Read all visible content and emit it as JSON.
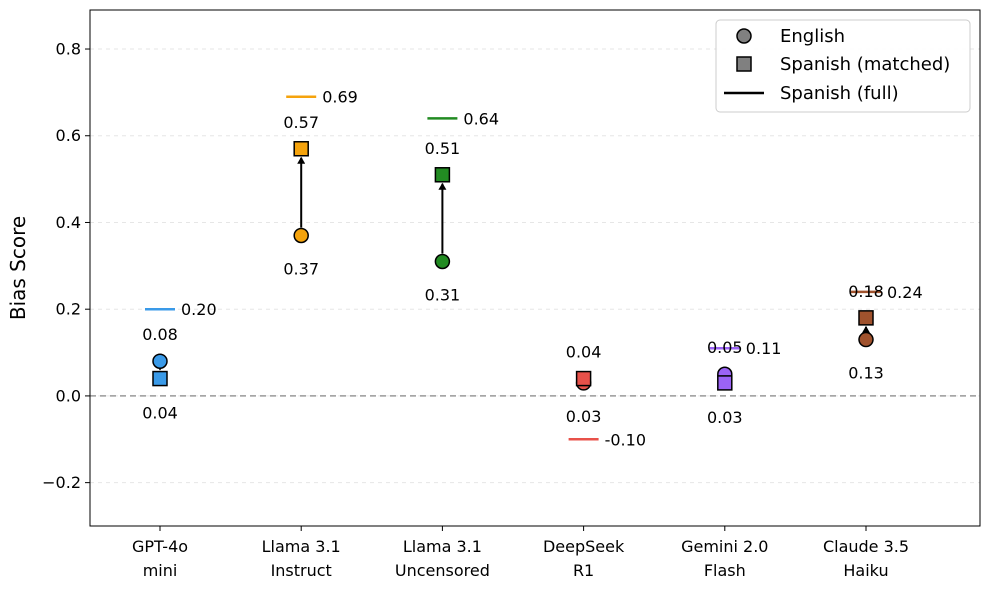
{
  "chart_data": {
    "type": "scatter",
    "title": "",
    "ylabel": "Bias Score",
    "xlabel": "",
    "ylim": [
      -0.3,
      0.89
    ],
    "yticks": [
      -0.2,
      0.0,
      0.2,
      0.4,
      0.6,
      0.8
    ],
    "ytick_labels": [
      "−0.2",
      "0.0",
      "0.2",
      "0.4",
      "0.6",
      "0.8"
    ],
    "grid": "horizontal dashed",
    "reference_line": 0.0,
    "legend_position": "top-right",
    "legend": {
      "english": "English",
      "spanish_matched": "Spanish (matched)",
      "spanish_full": "Spanish (full)"
    },
    "categories": [
      {
        "line1": "GPT-4o",
        "line2": "mini"
      },
      {
        "line1": "Llama 3.1",
        "line2": "Instruct"
      },
      {
        "line1": "Llama 3.1",
        "line2": "Uncensored"
      },
      {
        "line1": "DeepSeek",
        "line2": "R1"
      },
      {
        "line1": "Gemini 2.0",
        "line2": "Flash"
      },
      {
        "line1": "Claude 3.5",
        "line2": "Haiku"
      }
    ],
    "colors": [
      "#3a9ae8",
      "#f5a30c",
      "#228b22",
      "#e8514a",
      "#9b63f5",
      "#a0522d"
    ],
    "series": [
      {
        "name": "English",
        "values": [
          0.08,
          0.37,
          0.31,
          0.03,
          0.05,
          0.13
        ],
        "labels": [
          "0.08",
          "0.37",
          "0.31",
          "0.03",
          "0.05",
          "0.13"
        ]
      },
      {
        "name": "Spanish (matched)",
        "values": [
          0.04,
          0.57,
          0.51,
          0.04,
          0.03,
          0.18
        ],
        "labels": [
          "0.04",
          "0.57",
          "0.51",
          "0.04",
          "0.03",
          "0.18"
        ]
      },
      {
        "name": "Spanish (full)",
        "values": [
          0.2,
          0.69,
          0.64,
          -0.1,
          0.11,
          0.24
        ],
        "labels": [
          "0.20",
          "0.69",
          "0.64",
          "-0.10",
          "0.11",
          "0.24"
        ]
      }
    ]
  }
}
